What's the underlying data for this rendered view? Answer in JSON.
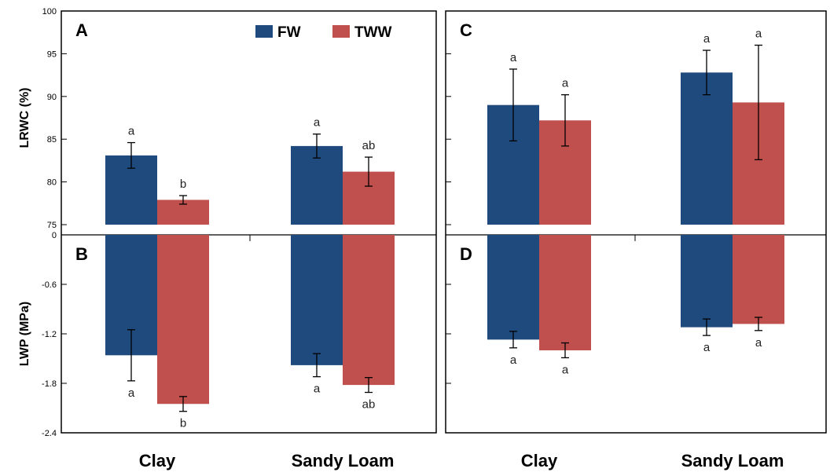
{
  "chart_data": [
    {
      "panel": "A",
      "type": "bar",
      "categories": [
        "Clay",
        "Sandy Loam"
      ],
      "series": [
        {
          "name": "FW",
          "values": [
            83.1,
            84.2
          ],
          "errors": [
            1.5,
            1.4
          ],
          "letters": [
            "a",
            "a"
          ]
        },
        {
          "name": "TWW",
          "values": [
            77.9,
            81.2
          ],
          "errors": [
            0.5,
            1.7
          ],
          "letters": [
            "b",
            "ab"
          ]
        }
      ],
      "ylabel": "LRWC (%)",
      "ylim": [
        75,
        100
      ],
      "yticks": [
        75,
        80,
        85,
        90,
        95,
        100
      ],
      "legend": "top-center"
    },
    {
      "panel": "B",
      "type": "bar",
      "categories": [
        "Clay",
        "Sandy Loam"
      ],
      "series": [
        {
          "name": "FW",
          "values": [
            -1.46,
            -1.58
          ],
          "errors": [
            0.31,
            0.14
          ],
          "letters": [
            "a",
            "a"
          ]
        },
        {
          "name": "TWW",
          "values": [
            -2.05,
            -1.82
          ],
          "errors": [
            0.09,
            0.09
          ],
          "letters": [
            "b",
            "ab"
          ]
        }
      ],
      "ylabel": "LWP (MPa)",
      "ylim": [
        -2.4,
        0
      ],
      "yticks": [
        0,
        -0.6,
        -1.2,
        -1.8,
        -2.4
      ]
    },
    {
      "panel": "C",
      "type": "bar",
      "categories": [
        "Clay",
        "Sandy Loam"
      ],
      "series": [
        {
          "name": "FW",
          "values": [
            89.0,
            92.8
          ],
          "errors": [
            4.2,
            2.6
          ],
          "letters": [
            "a",
            "a"
          ]
        },
        {
          "name": "TWW",
          "values": [
            87.2,
            89.3
          ],
          "errors": [
            3.0,
            6.7
          ],
          "letters": [
            "a",
            "a"
          ]
        }
      ],
      "ylim": [
        75,
        100
      ]
    },
    {
      "panel": "D",
      "type": "bar",
      "categories": [
        "Clay",
        "Sandy Loam"
      ],
      "series": [
        {
          "name": "FW",
          "values": [
            -1.27,
            -1.12
          ],
          "errors": [
            0.1,
            0.1
          ],
          "letters": [
            "a",
            "a"
          ]
        },
        {
          "name": "TWW",
          "values": [
            -1.4,
            -1.08
          ],
          "errors": [
            0.09,
            0.08
          ],
          "letters": [
            "a",
            "a"
          ]
        }
      ],
      "ylim": [
        -2.4,
        0
      ]
    }
  ],
  "colors": {
    "FW": "#1f4a7e",
    "TWW": "#c0504d"
  },
  "x_labels": [
    "Clay",
    "Sandy Loam"
  ]
}
